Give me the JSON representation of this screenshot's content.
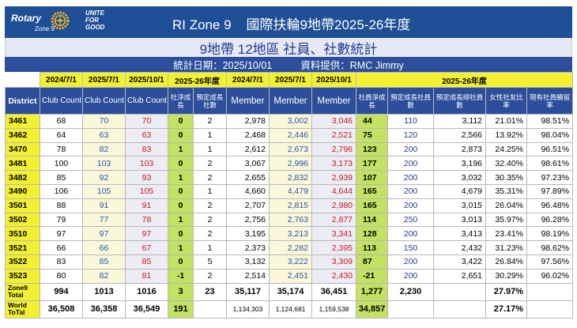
{
  "header": {
    "logo_text": "Rotary",
    "logo_zone": "Zone 9",
    "tagline": [
      "UNITE",
      "FOR",
      "GOOD"
    ],
    "title": "RI Zone 9    國際扶輪9地帶2025-26年度"
  },
  "subtitle": "9地帶 12地區 社員、社數統計",
  "stat_date": "統計日期：2025/10/01",
  "stat_source": "資料提供：RMC Jimmy",
  "table": {
    "group_headers": [
      "2024/7/1",
      "2025/7/1",
      "2025/10/1",
      "2025-26年度",
      "2024/7/1",
      "2025/7/1",
      "2025/10/1",
      "2025-26年度"
    ],
    "col_headers": [
      "District",
      "Club Count",
      "Club Count",
      "Club Count",
      "社淨成長",
      "預定成長社數",
      "Member",
      "Member",
      "Member",
      "社員淨成長",
      "預定成長社員數",
      "預定成長總社員數",
      "女性社友比率",
      "現有社員續留率"
    ],
    "rows": [
      [
        "3461",
        "68",
        "70",
        "70",
        "0",
        "2",
        "2,978",
        "3,002",
        "3,046",
        "44",
        "110",
        "3,112",
        "21.01%",
        "98.51%"
      ],
      [
        "3462",
        "64",
        "63",
        "63",
        "0",
        "1",
        "2,468",
        "2,446",
        "2,521",
        "75",
        "120",
        "2,566",
        "13.92%",
        "98.04%"
      ],
      [
        "3470",
        "78",
        "82",
        "83",
        "1",
        "1",
        "2,612",
        "2,673",
        "2,796",
        "123",
        "200",
        "2,873",
        "24.25%",
        "96.51%"
      ],
      [
        "3481",
        "100",
        "103",
        "103",
        "0",
        "2",
        "3,067",
        "2,996",
        "3,173",
        "177",
        "200",
        "3,196",
        "32.40%",
        "98.61%"
      ],
      [
        "3482",
        "85",
        "92",
        "93",
        "1",
        "2",
        "2,655",
        "2,832",
        "2,939",
        "107",
        "200",
        "3,032",
        "30.35%",
        "97.23%"
      ],
      [
        "3490",
        "106",
        "105",
        "105",
        "0",
        "1",
        "4,660",
        "4,479",
        "4,644",
        "165",
        "200",
        "4,679",
        "35.31%",
        "97.89%"
      ],
      [
        "3501",
        "88",
        "91",
        "91",
        "0",
        "2",
        "2,707",
        "2,815",
        "2,980",
        "165",
        "200",
        "3,015",
        "26.04%",
        "96.48%"
      ],
      [
        "3502",
        "79",
        "77",
        "78",
        "1",
        "2",
        "2,756",
        "2,763",
        "2,877",
        "114",
        "250",
        "3,013",
        "35.97%",
        "96.28%"
      ],
      [
        "3510",
        "97",
        "97",
        "97",
        "0",
        "2",
        "3,195",
        "3,213",
        "3,341",
        "128",
        "200",
        "3,413",
        "23.41%",
        "98.19%"
      ],
      [
        "3521",
        "66",
        "66",
        "67",
        "1",
        "1",
        "2,373",
        "2,282",
        "2,395",
        "113",
        "150",
        "2,432",
        "31.23%",
        "98.62%"
      ],
      [
        "3522",
        "83",
        "85",
        "85",
        "0",
        "5",
        "3,132",
        "3,222",
        "3,309",
        "87",
        "200",
        "3,422",
        "26.84%",
        "97.56%"
      ],
      [
        "3523",
        "80",
        "82",
        "81",
        "-1",
        "2",
        "2,514",
        "2,451",
        "2,430",
        "-21",
        "200",
        "2,651",
        "30.29%",
        "96.02%"
      ]
    ],
    "zone_total": {
      "label": "Zone9 Total",
      "values": [
        "994",
        "1013",
        "1016",
        "3",
        "23",
        "35,117",
        "35,174",
        "36,451",
        "1,277",
        "2,230",
        "",
        "27.97%",
        ""
      ]
    },
    "world_total": {
      "label": "World ToTal",
      "values": [
        "36,508",
        "36,358",
        "36,549",
        "191",
        "",
        "1,134,303",
        "1,124,681",
        "1,159,538",
        "34,857",
        "",
        "",
        "27.17%",
        ""
      ]
    }
  },
  "colors": {
    "header_blue": "#1f4f96",
    "yellow": "#f3f031",
    "green": "#c3e163",
    "blue_text": "#1f55b0",
    "red_text": "#c91a1a"
  }
}
